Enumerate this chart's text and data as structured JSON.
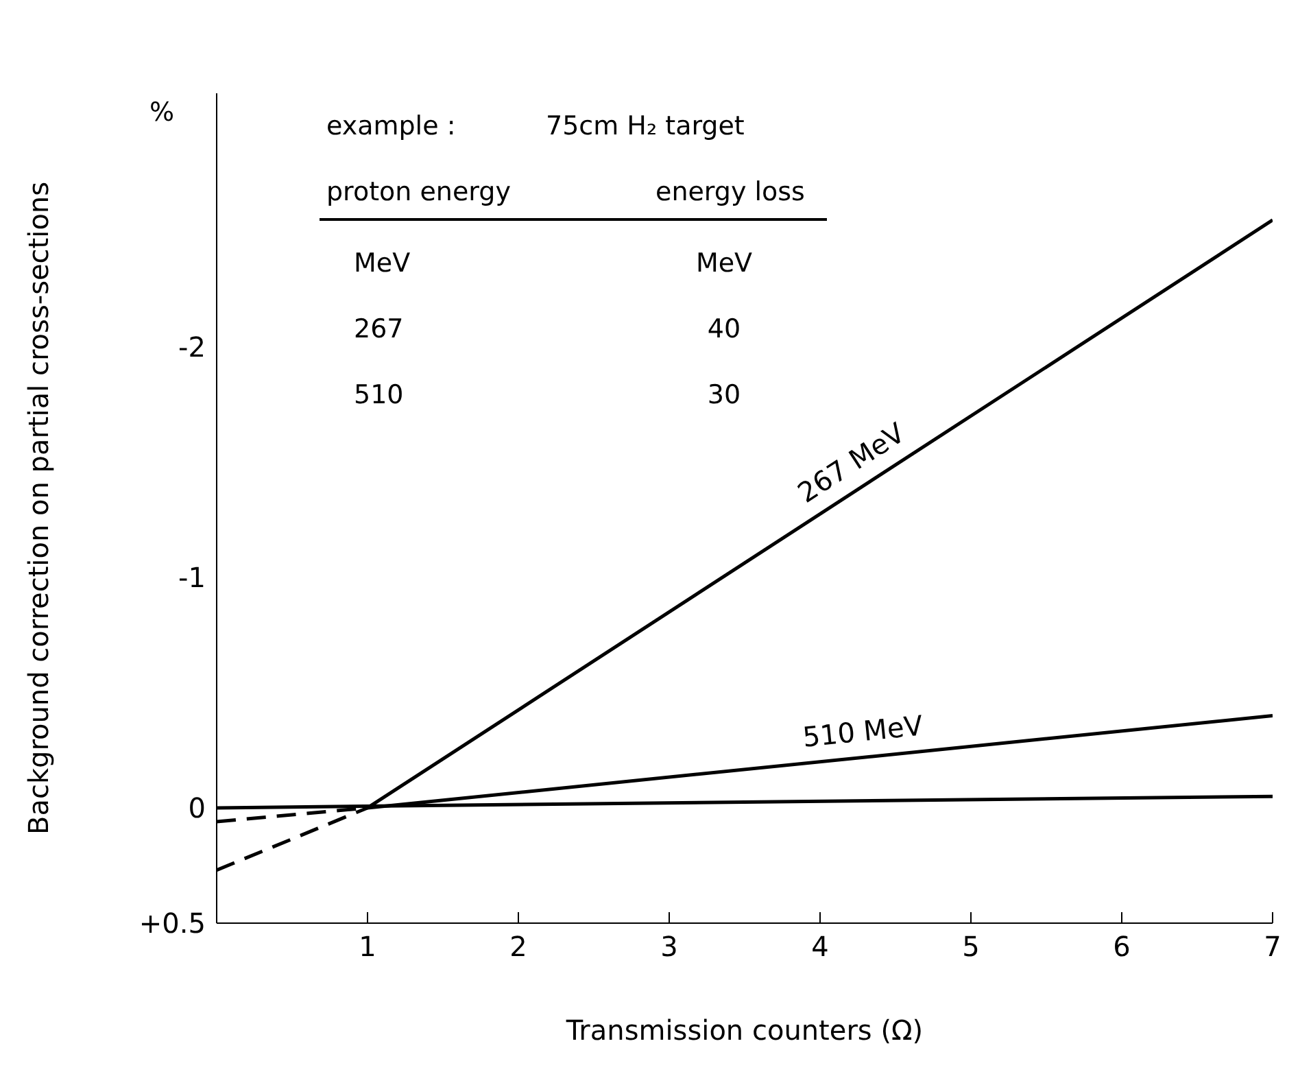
{
  "chart_data": {
    "type": "line",
    "xlabel": "Transmission counters   (Ω)",
    "ylabel": "Background correction on partial cross-sections",
    "series": [
      {
        "name": "267 MeV",
        "color": "#000000",
        "x": [
          1,
          7
        ],
        "values": [
          0,
          -2.55
        ]
      },
      {
        "color": "#000000",
        "x": [
          0,
          1
        ],
        "values": [
          0.27,
          0
        ],
        "line_style": "dashed"
      },
      {
        "name": "510 MeV",
        "color": "#000000",
        "x": [
          1,
          7
        ],
        "values": [
          0,
          -0.4
        ]
      },
      {
        "color": "#000000",
        "x": [
          0,
          1
        ],
        "values": [
          0.06,
          0
        ],
        "line_style": "dashed"
      },
      {
        "color": "#000000",
        "x": [
          0,
          7
        ],
        "values": [
          0,
          -0.05
        ]
      }
    ],
    "xlim": [
      0,
      7
    ],
    "xticks": [
      1,
      2,
      3,
      4,
      5,
      6,
      7
    ],
    "ylim": [
      0.5,
      -3.1
    ],
    "yticks": [
      {
        "value": 0.5,
        "label": "+0.5"
      },
      0,
      -1,
      -2
    ],
    "grid": false,
    "legend": false,
    "marker": "none",
    "line_style": "solid",
    "annotations": [
      "%",
      "example :",
      "75cm  H₂  target",
      "proton energy",
      "energy loss",
      "MeV",
      "MeV",
      "267",
      "40",
      "510",
      "30"
    ]
  }
}
